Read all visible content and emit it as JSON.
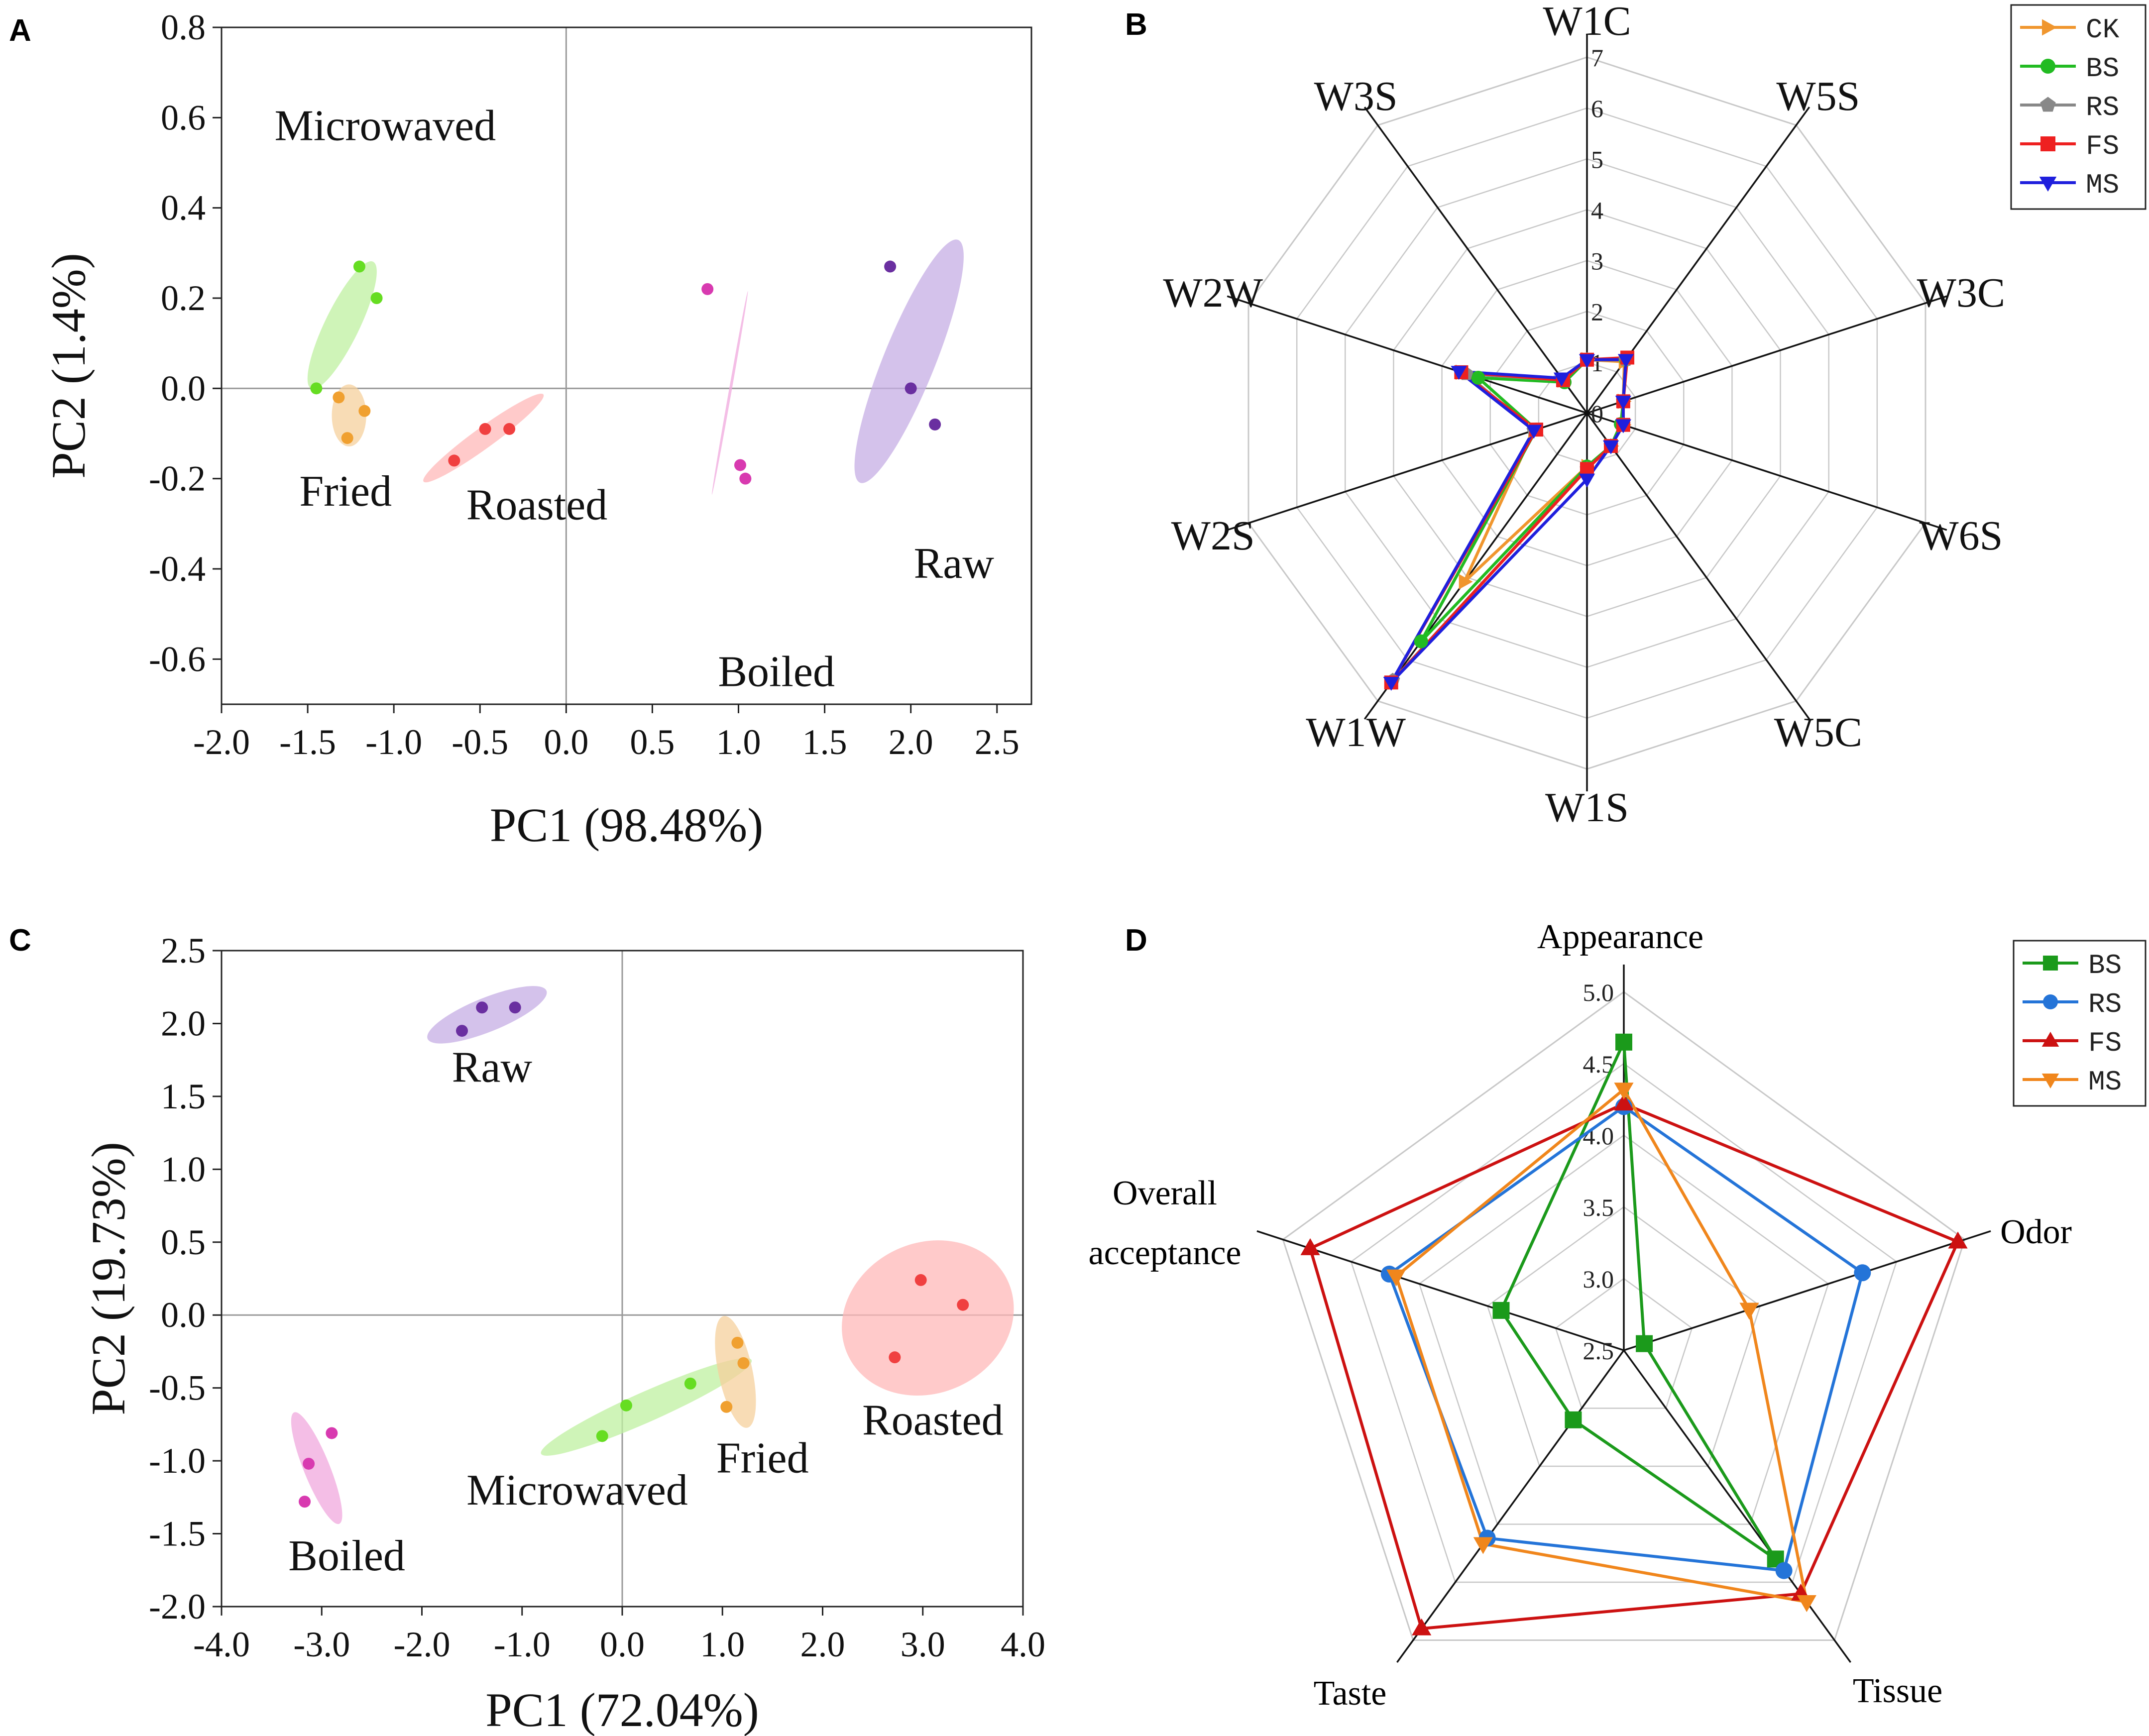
{
  "chart_data": [
    {
      "panel": "A",
      "type": "scatter",
      "xlabel": "PC1 (98.48%)",
      "ylabel": "PC2 (1.4%)",
      "xlim": [
        -2.0,
        2.7
      ],
      "ylim": [
        -0.7,
        0.8
      ],
      "xticks": [
        "-2.0",
        "-1.5",
        "-1.0",
        "-0.5",
        "0.0",
        "0.5",
        "1.0",
        "1.5",
        "2.0",
        "2.5"
      ],
      "yticks": [
        "0.8",
        "0.6",
        "0.4",
        "0.2",
        "0.0",
        "-0.2",
        "-0.4",
        "-0.6"
      ],
      "groups": [
        {
          "name": "Microwaved",
          "color": "#66dd22",
          "fill": "#bff0a0",
          "points": [
            [
              -1.2,
              0.27
            ],
            [
              -1.1,
              0.2
            ],
            [
              -1.45,
              0.0
            ]
          ],
          "ellipse": {
            "cx": -1.3,
            "cy": 0.14,
            "rx": 0.41,
            "ry": 0.1,
            "angle": 64
          },
          "label_at": [
            -1.05,
            0.55
          ]
        },
        {
          "name": "Fried",
          "color": "#f0a030",
          "fill": "#f6d09c",
          "points": [
            [
              -1.32,
              -0.02
            ],
            [
              -1.17,
              -0.05
            ],
            [
              -1.27,
              -0.11
            ]
          ],
          "ellipse": {
            "cx": -1.26,
            "cy": -0.06,
            "rx": 0.1,
            "ry": 0.18,
            "angle": 0
          },
          "label_at": [
            -1.28,
            -0.26
          ]
        },
        {
          "name": "Roasted",
          "color": "#f04040",
          "fill": "#ffb8b8",
          "points": [
            [
              -0.65,
              -0.16
            ],
            [
              -0.47,
              -0.09
            ],
            [
              -0.33,
              -0.09
            ]
          ],
          "ellipse": {
            "cx": -0.48,
            "cy": -0.11,
            "rx": 0.43,
            "ry": 0.06,
            "angle": 36
          },
          "label_at": [
            -0.17,
            -0.29
          ]
        },
        {
          "name": "Boiled",
          "color": "#d83ab0",
          "fill": "#f0a8de",
          "points": [
            [
              0.82,
              0.22
            ],
            [
              1.01,
              -0.17
            ],
            [
              1.04,
              -0.2
            ]
          ],
          "ellipse": {
            "cx": 0.95,
            "cy": -0.01,
            "rx": 0.6,
            "ry": 0.008,
            "angle": 80
          },
          "label_at": [
            1.22,
            -0.66
          ]
        },
        {
          "name": "Raw",
          "color": "#6a2fa0",
          "fill": "#c6aee4",
          "points": [
            [
              1.88,
              0.27
            ],
            [
              2.0,
              0.0
            ],
            [
              2.14,
              -0.08
            ]
          ],
          "ellipse": {
            "cx": 1.99,
            "cy": 0.06,
            "rx": 0.76,
            "ry": 0.15,
            "angle": 68
          },
          "label_at": [
            2.25,
            -0.42
          ]
        }
      ]
    },
    {
      "panel": "B",
      "type": "radar",
      "axes": [
        "W1C",
        "W5S",
        "W3C",
        "W6S",
        "W5C",
        "W1S",
        "W1W",
        "W2S",
        "W2W",
        "W3S"
      ],
      "rmax": 7,
      "rticks": [
        "0",
        "1",
        "2",
        "3",
        "4",
        "5",
        "6",
        "7"
      ],
      "series": [
        {
          "name": "CK",
          "color": "#f0962e",
          "marker": "tri-right",
          "values": [
            1.05,
            1.25,
            0.75,
            0.75,
            0.8,
            1.05,
            4.1,
            1.1,
            2.6,
            0.8
          ]
        },
        {
          "name": "BS",
          "color": "#22bb22",
          "marker": "circle",
          "values": [
            1.05,
            1.3,
            0.75,
            0.7,
            0.8,
            1.05,
            5.55,
            1.05,
            2.25,
            0.75
          ]
        },
        {
          "name": "RS",
          "color": "#888888",
          "marker": "pentagon",
          "values": [
            1.05,
            1.3,
            0.75,
            0.75,
            0.8,
            1.1,
            6.5,
            1.1,
            2.5,
            0.8
          ]
        },
        {
          "name": "FS",
          "color": "#ee2020",
          "marker": "square",
          "values": [
            1.05,
            1.35,
            0.75,
            0.75,
            0.8,
            1.1,
            6.55,
            1.05,
            2.6,
            0.8
          ]
        },
        {
          "name": "MS",
          "color": "#1f1fdd",
          "marker": "tri-down",
          "values": [
            1.05,
            1.3,
            0.75,
            0.75,
            0.8,
            1.3,
            6.55,
            1.1,
            2.65,
            0.85
          ]
        }
      ]
    },
    {
      "panel": "C",
      "type": "scatter",
      "xlabel": "PC1 (72.04%)",
      "ylabel": "PC2 (19.73%)",
      "xlim": [
        -4.0,
        4.0
      ],
      "ylim": [
        -2.0,
        2.5
      ],
      "xticks": [
        "-4.0",
        "-3.0",
        "-2.0",
        "-1.0",
        "0.0",
        "1.0",
        "2.0",
        "3.0",
        "4.0"
      ],
      "yticks": [
        "2.5",
        "2.0",
        "1.5",
        "1.0",
        "0.5",
        "0.0",
        "-0.5",
        "-1.0",
        "-1.5",
        "-2.0"
      ],
      "groups": [
        {
          "name": "Raw",
          "color": "#6a2fa0",
          "fill": "#c6aee4",
          "points": [
            [
              -1.6,
              1.95
            ],
            [
              -1.4,
              2.11
            ],
            [
              -1.07,
              2.11
            ]
          ],
          "ellipse": {
            "cx": -1.35,
            "cy": 2.06,
            "rx": 0.64,
            "ry": 0.17,
            "angle": 22
          },
          "label_at": [
            -1.3,
            1.6
          ]
        },
        {
          "name": "Boiled",
          "color": "#d83ab0",
          "fill": "#f0a8de",
          "points": [
            [
              -2.9,
              -0.81
            ],
            [
              -3.13,
              -1.02
            ],
            [
              -3.17,
              -1.28
            ]
          ],
          "ellipse": {
            "cx": -3.05,
            "cy": -1.05,
            "rx": 0.6,
            "ry": 0.13,
            "angle": -68
          },
          "label_at": [
            -2.75,
            -1.75
          ]
        },
        {
          "name": "Microwaved",
          "color": "#66dd22",
          "fill": "#bff0a0",
          "points": [
            [
              0.68,
              -0.47
            ],
            [
              0.04,
              -0.62
            ],
            [
              -0.2,
              -0.83
            ]
          ],
          "ellipse": {
            "cx": 0.24,
            "cy": -0.63,
            "rx": 1.15,
            "ry": 0.15,
            "angle": 24
          },
          "label_at": [
            -0.45,
            -1.3
          ]
        },
        {
          "name": "Fried",
          "color": "#f0a030",
          "fill": "#f6d09c",
          "points": [
            [
              1.15,
              -0.19
            ],
            [
              1.21,
              -0.33
            ],
            [
              1.04,
              -0.63
            ]
          ],
          "ellipse": {
            "cx": 1.13,
            "cy": -0.39,
            "rx": 0.57,
            "ry": 0.17,
            "angle": -78
          },
          "label_at": [
            1.4,
            -1.08
          ]
        },
        {
          "name": "Roasted",
          "color": "#f04040",
          "fill": "#ffb8b8",
          "points": [
            [
              2.98,
              0.24
            ],
            [
              3.4,
              0.07
            ],
            [
              2.72,
              -0.29
            ]
          ],
          "ellipse": {
            "cx": 3.05,
            "cy": -0.02,
            "rx": 0.88,
            "ry": 0.75,
            "angle": 25
          },
          "label_at": [
            3.1,
            -0.82
          ]
        }
      ]
    },
    {
      "panel": "D",
      "type": "radar",
      "axes": [
        "Appearance",
        "Odor",
        "Tissue",
        "Taste",
        "Overall acceptance"
      ],
      "rmin": 2.5,
      "rmax": 5.0,
      "rticks": [
        "2.5",
        "3.0",
        "3.5",
        "4.0",
        "4.5",
        "5.0"
      ],
      "series": [
        {
          "name": "BS",
          "color": "#1b9a1b",
          "marker": "square",
          "values": [
            4.65,
            2.65,
            4.3,
            3.1,
            3.4
          ]
        },
        {
          "name": "RS",
          "color": "#2474d8",
          "marker": "circle",
          "values": [
            4.2,
            4.25,
            4.4,
            4.12,
            4.22
          ]
        },
        {
          "name": "FS",
          "color": "#cc1111",
          "marker": "triangle",
          "values": [
            4.22,
            4.95,
            4.6,
            4.9,
            4.8
          ]
        },
        {
          "name": "MS",
          "color": "#f0861c",
          "marker": "tri-down",
          "values": [
            4.32,
            3.42,
            4.67,
            4.17,
            4.17
          ]
        }
      ]
    }
  ],
  "panel_labels": {
    "a": "A",
    "b": "B",
    "c": "C",
    "d": "D"
  },
  "d_axis_labels": {
    "appearance": "Appearance",
    "odor": "Odor",
    "tissue": "Tissue",
    "taste": "Taste",
    "overall_line1": "Overall",
    "overall_line2": "acceptance"
  }
}
